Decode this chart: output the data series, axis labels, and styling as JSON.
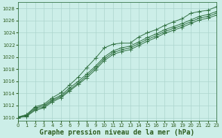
{
  "background_color": "#cceee8",
  "grid_color": "#aad4cc",
  "line_color": "#2d6e3e",
  "xlabel": "Graphe pression niveau de la mer (hPa)",
  "xlim": [
    0,
    23
  ],
  "ylim": [
    1009.5,
    1029
  ],
  "yticks": [
    1010,
    1012,
    1014,
    1016,
    1018,
    1020,
    1022,
    1024,
    1026,
    1028
  ],
  "xticks": [
    0,
    1,
    2,
    3,
    4,
    5,
    6,
    7,
    8,
    9,
    10,
    11,
    12,
    13,
    14,
    15,
    16,
    17,
    18,
    19,
    20,
    21,
    22,
    23
  ],
  "series": [
    [
      1010.1,
      1010.5,
      1011.8,
      1012.2,
      1013.3,
      1014.1,
      1015.4,
      1016.7,
      1018.3,
      1019.8,
      1021.5,
      1022.1,
      1022.3,
      1022.3,
      1023.3,
      1024.0,
      1024.5,
      1025.2,
      1025.8,
      1026.3,
      1027.2,
      1027.5,
      1027.7,
      1028.3
    ],
    [
      1010.1,
      1010.4,
      1011.6,
      1012.0,
      1013.0,
      1013.7,
      1014.9,
      1016.0,
      1017.2,
      1018.5,
      1020.0,
      1021.0,
      1021.5,
      1021.8,
      1022.5,
      1023.2,
      1023.8,
      1024.5,
      1025.0,
      1025.5,
      1026.1,
      1026.7,
      1027.0,
      1027.5
    ],
    [
      1010.0,
      1010.3,
      1011.4,
      1011.8,
      1012.8,
      1013.5,
      1014.6,
      1015.7,
      1016.9,
      1018.2,
      1019.7,
      1020.7,
      1021.2,
      1021.5,
      1022.2,
      1022.9,
      1023.5,
      1024.2,
      1024.7,
      1025.2,
      1025.8,
      1026.4,
      1026.7,
      1027.2
    ],
    [
      1010.0,
      1010.2,
      1011.2,
      1011.6,
      1012.6,
      1013.3,
      1014.4,
      1015.5,
      1016.6,
      1017.9,
      1019.4,
      1020.4,
      1020.9,
      1021.2,
      1021.9,
      1022.6,
      1023.2,
      1023.9,
      1024.4,
      1024.9,
      1025.5,
      1026.1,
      1026.4,
      1026.9
    ]
  ],
  "marker": "+",
  "marker_size": 4,
  "font_color": "#2d5c1e",
  "title_fontsize": 7,
  "tick_fontsize": 5
}
